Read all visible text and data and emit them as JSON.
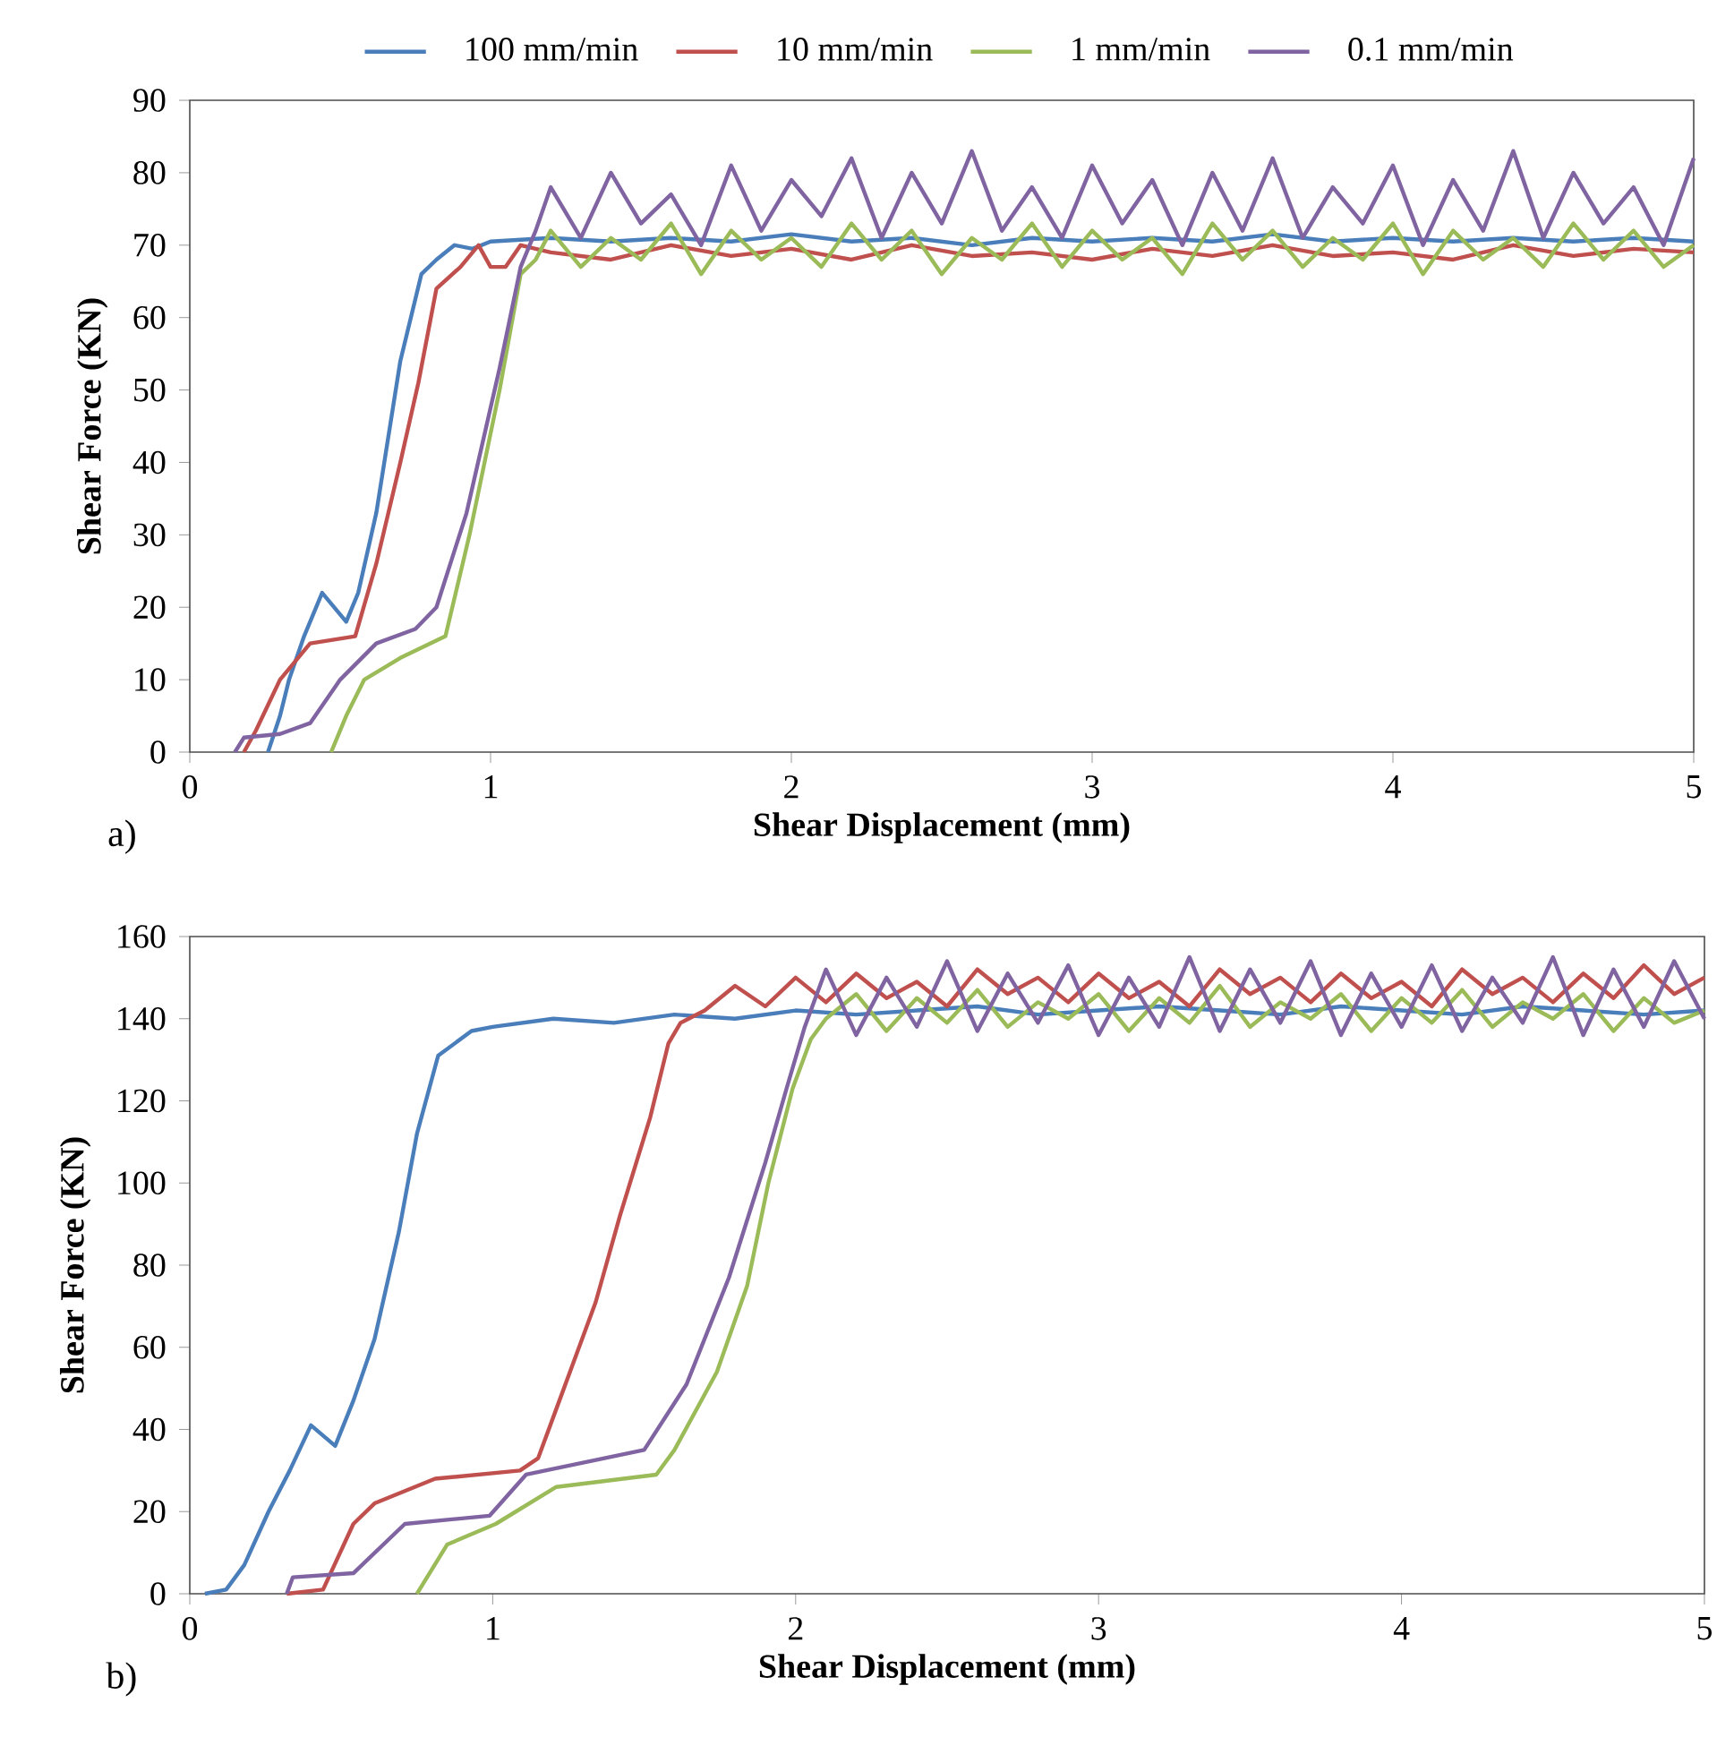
{
  "chart_data": [
    {
      "type": "line",
      "xlabel": "Shear Displacement (mm)",
      "ylabel": "Shear Force (KN)",
      "annotations": [
        "a)"
      ],
      "xlim": [
        0,
        5
      ],
      "ylim": [
        0,
        90
      ],
      "xticks": [
        0,
        1,
        2,
        3,
        4,
        5
      ],
      "yticks": [
        0,
        10,
        20,
        30,
        40,
        50,
        60,
        70,
        80,
        90
      ],
      "legend": "top",
      "series": [
        {
          "name": "100 mm/min",
          "color": "#4a7ebb",
          "x": [
            0.26,
            0.3,
            0.33,
            0.38,
            0.44,
            0.52,
            0.56,
            0.62,
            0.7,
            0.77,
            0.82,
            0.88,
            0.94,
            1.0,
            1.2,
            1.4,
            1.6,
            1.8,
            2.0,
            2.2,
            2.4,
            2.6,
            2.8,
            3.0,
            3.2,
            3.4,
            3.6,
            3.8,
            4.0,
            4.2,
            4.4,
            4.6,
            4.8,
            5.0
          ],
          "values": [
            0,
            5,
            10,
            16,
            22,
            18,
            22,
            33,
            54,
            66,
            68,
            70,
            69.5,
            70.5,
            71,
            70.5,
            71,
            70.5,
            71.5,
            70.5,
            71,
            70,
            71,
            70.5,
            71,
            70.5,
            71.5,
            70.5,
            71,
            70.5,
            71,
            70.5,
            71,
            70.5
          ]
        },
        {
          "name": "10 mm/min",
          "color": "#c0504d",
          "x": [
            0.18,
            0.22,
            0.3,
            0.4,
            0.55,
            0.62,
            0.7,
            0.76,
            0.82,
            0.9,
            0.96,
            1.0,
            1.05,
            1.1,
            1.2,
            1.4,
            1.6,
            1.8,
            2.0,
            2.2,
            2.4,
            2.6,
            2.8,
            3.0,
            3.2,
            3.4,
            3.6,
            3.8,
            4.0,
            4.2,
            4.4,
            4.6,
            4.8,
            5.0
          ],
          "values": [
            0,
            3,
            10,
            15,
            16,
            26,
            40,
            51,
            64,
            67,
            70,
            67,
            67,
            70,
            69,
            68,
            70,
            68.5,
            69.5,
            68,
            70,
            68.5,
            69,
            68,
            69.5,
            68.5,
            70,
            68.5,
            69,
            68,
            70,
            68.5,
            69.5,
            69
          ]
        },
        {
          "name": "1 mm/min",
          "color": "#9bbb59",
          "x": [
            0.47,
            0.52,
            0.58,
            0.7,
            0.85,
            0.93,
            1.03,
            1.1,
            1.15,
            1.2,
            1.3,
            1.4,
            1.5,
            1.6,
            1.7,
            1.8,
            1.9,
            2.0,
            2.1,
            2.2,
            2.3,
            2.4,
            2.5,
            2.6,
            2.7,
            2.8,
            2.9,
            3.0,
            3.1,
            3.2,
            3.3,
            3.4,
            3.5,
            3.6,
            3.7,
            3.8,
            3.9,
            4.0,
            4.1,
            4.2,
            4.3,
            4.4,
            4.5,
            4.6,
            4.7,
            4.8,
            4.9,
            5.0
          ],
          "values": [
            0,
            5,
            10,
            13,
            16,
            30,
            50,
            66,
            68,
            72,
            67,
            71,
            68,
            73,
            66,
            72,
            68,
            71,
            67,
            73,
            68,
            72,
            66,
            71,
            68,
            73,
            67,
            72,
            68,
            71,
            66,
            73,
            68,
            72,
            67,
            71,
            68,
            73,
            66,
            72,
            68,
            71,
            67,
            73,
            68,
            72,
            67,
            70
          ]
        },
        {
          "name": "0.1 mm/min",
          "color": "#8064a2",
          "x": [
            0.15,
            0.18,
            0.3,
            0.4,
            0.5,
            0.62,
            0.75,
            0.82,
            0.92,
            1.03,
            1.1,
            1.15,
            1.2,
            1.3,
            1.4,
            1.5,
            1.6,
            1.7,
            1.8,
            1.9,
            2.0,
            2.1,
            2.2,
            2.3,
            2.4,
            2.5,
            2.6,
            2.7,
            2.8,
            2.9,
            3.0,
            3.1,
            3.2,
            3.3,
            3.4,
            3.5,
            3.6,
            3.7,
            3.8,
            3.9,
            4.0,
            4.1,
            4.2,
            4.3,
            4.4,
            4.5,
            4.6,
            4.7,
            4.8,
            4.9,
            5.0
          ],
          "values": [
            0,
            2,
            2.5,
            4,
            10,
            15,
            17,
            20,
            33,
            53,
            67,
            72,
            78,
            71,
            80,
            73,
            77,
            70,
            81,
            72,
            79,
            74,
            82,
            71,
            80,
            73,
            83,
            72,
            78,
            71,
            81,
            73,
            79,
            70,
            80,
            72,
            82,
            71,
            78,
            73,
            81,
            70,
            79,
            72,
            83,
            71,
            80,
            73,
            78,
            70,
            82
          ]
        }
      ]
    },
    {
      "type": "line",
      "xlabel": "Shear Displacement (mm)",
      "ylabel": "Shear Force (KN)",
      "annotations": [
        "b)"
      ],
      "xlim": [
        0,
        5
      ],
      "ylim": [
        0,
        160
      ],
      "xticks": [
        0,
        1,
        2,
        3,
        4,
        5
      ],
      "yticks": [
        0,
        20,
        40,
        60,
        80,
        100,
        120,
        140,
        160
      ],
      "series": [
        {
          "color": "#4a7ebb",
          "x": [
            0.05,
            0.12,
            0.18,
            0.26,
            0.33,
            0.4,
            0.48,
            0.54,
            0.61,
            0.69,
            0.75,
            0.82,
            0.93,
            1.0,
            1.2,
            1.4,
            1.6,
            1.8,
            2.0,
            2.2,
            2.4,
            2.6,
            2.8,
            3.0,
            3.2,
            3.4,
            3.6,
            3.8,
            4.0,
            4.2,
            4.4,
            4.6,
            4.8,
            5.0
          ],
          "values": [
            0,
            1,
            7,
            20,
            30,
            41,
            36,
            47,
            62,
            88,
            112,
            131,
            137,
            138,
            140,
            139,
            141,
            140,
            142,
            141,
            142,
            143,
            141,
            142,
            143,
            142,
            141,
            143,
            142,
            141,
            143,
            142,
            141,
            142
          ]
        },
        {
          "color": "#c0504d",
          "x": [
            0.32,
            0.44,
            0.54,
            0.61,
            0.81,
            1.09,
            1.15,
            1.22,
            1.34,
            1.42,
            1.52,
            1.58,
            1.62,
            1.7,
            1.8,
            1.9,
            2.0,
            2.1,
            2.2,
            2.3,
            2.4,
            2.5,
            2.6,
            2.7,
            2.8,
            2.9,
            3.0,
            3.1,
            3.2,
            3.3,
            3.4,
            3.5,
            3.6,
            3.7,
            3.8,
            3.9,
            4.0,
            4.1,
            4.2,
            4.3,
            4.4,
            4.5,
            4.6,
            4.7,
            4.8,
            4.9,
            5.0
          ],
          "values": [
            0,
            1,
            17,
            22,
            28,
            30,
            33,
            47,
            71,
            92,
            116,
            134,
            139,
            142,
            148,
            143,
            150,
            144,
            151,
            145,
            149,
            143,
            152,
            146,
            150,
            144,
            151,
            145,
            149,
            143,
            152,
            146,
            150,
            144,
            151,
            145,
            149,
            143,
            152,
            146,
            150,
            144,
            151,
            145,
            153,
            146,
            150
          ]
        },
        {
          "color": "#9bbb59",
          "x": [
            0.75,
            0.85,
            1.01,
            1.21,
            1.54,
            1.6,
            1.74,
            1.84,
            1.91,
            1.99,
            2.05,
            2.1,
            2.2,
            2.3,
            2.4,
            2.5,
            2.6,
            2.7,
            2.8,
            2.9,
            3.0,
            3.1,
            3.2,
            3.3,
            3.4,
            3.5,
            3.6,
            3.7,
            3.8,
            3.9,
            4.0,
            4.1,
            4.2,
            4.3,
            4.4,
            4.5,
            4.6,
            4.7,
            4.8,
            4.9,
            5.0
          ],
          "values": [
            0,
            12,
            17,
            26,
            29,
            35,
            54,
            75,
            100,
            123,
            135,
            140,
            146,
            137,
            145,
            139,
            147,
            138,
            144,
            140,
            146,
            137,
            145,
            139,
            148,
            138,
            144,
            140,
            146,
            137,
            145,
            139,
            147,
            138,
            144,
            140,
            146,
            137,
            145,
            139,
            142
          ]
        },
        {
          "color": "#8064a2",
          "x": [
            0.32,
            0.34,
            0.54,
            0.71,
            0.99,
            1.11,
            1.5,
            1.64,
            1.78,
            1.9,
            1.97,
            2.03,
            2.1,
            2.2,
            2.3,
            2.4,
            2.5,
            2.6,
            2.7,
            2.8,
            2.9,
            3.0,
            3.1,
            3.2,
            3.3,
            3.4,
            3.5,
            3.6,
            3.7,
            3.8,
            3.9,
            4.0,
            4.1,
            4.2,
            4.3,
            4.4,
            4.5,
            4.6,
            4.7,
            4.8,
            4.9,
            5.0
          ],
          "values": [
            0,
            4,
            5,
            17,
            19,
            29,
            35,
            51,
            77,
            105,
            123,
            138,
            152,
            136,
            150,
            138,
            154,
            137,
            151,
            139,
            153,
            136,
            150,
            138,
            155,
            137,
            152,
            139,
            154,
            136,
            151,
            138,
            153,
            137,
            150,
            139,
            155,
            136,
            152,
            138,
            154,
            140
          ]
        }
      ]
    }
  ]
}
